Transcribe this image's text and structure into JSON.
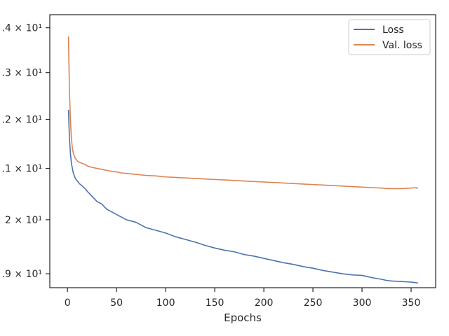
{
  "chart_data": {
    "type": "line",
    "xlabel": "Epochs",
    "ylabel": "",
    "yscale": "log",
    "xlim": [
      -18,
      375
    ],
    "ylim": [
      18.75,
      24.3
    ],
    "x_ticks": [
      0,
      50,
      100,
      150,
      200,
      250,
      300,
      350
    ],
    "x_tick_labels": [
      "0",
      "50",
      "100",
      "150",
      "200",
      "250",
      "300",
      "350"
    ],
    "y_ticks": [
      {
        "value": 19,
        "label": ".9 × 10¹"
      },
      {
        "value": 20,
        "label": "2 × 10¹"
      },
      {
        "value": 21,
        "label": ".1 × 10¹"
      },
      {
        "value": 22,
        "label": ".2 × 10¹"
      },
      {
        "value": 23,
        "label": ".3 × 10¹"
      },
      {
        "value": 24,
        "label": ".4 × 10¹"
      }
    ],
    "grid": false,
    "legend_position": "top-right",
    "series": [
      {
        "name": "Loss",
        "color": "#4c72b0",
        "x": [
          1,
          2,
          3,
          4,
          5,
          6,
          8,
          10,
          12,
          15,
          18,
          20,
          25,
          30,
          35,
          40,
          45,
          50,
          55,
          60,
          70,
          75,
          80,
          90,
          100,
          110,
          120,
          130,
          140,
          150,
          160,
          170,
          180,
          190,
          200,
          210,
          220,
          230,
          240,
          250,
          260,
          270,
          280,
          290,
          300,
          310,
          320,
          325,
          330,
          340,
          350,
          355,
          357
        ],
        "y": [
          22.2,
          21.6,
          21.3,
          21.1,
          21.0,
          20.9,
          20.8,
          20.75,
          20.7,
          20.65,
          20.6,
          20.55,
          20.45,
          20.35,
          20.3,
          20.2,
          20.15,
          20.1,
          20.05,
          20.0,
          19.95,
          19.9,
          19.85,
          19.8,
          19.75,
          19.68,
          19.63,
          19.58,
          19.52,
          19.47,
          19.43,
          19.4,
          19.35,
          19.32,
          19.28,
          19.24,
          19.2,
          19.17,
          19.13,
          19.1,
          19.06,
          19.03,
          19.0,
          18.98,
          18.97,
          18.93,
          18.9,
          18.88,
          18.87,
          18.86,
          18.85,
          18.84,
          18.83
        ]
      },
      {
        "name": "Val. loss",
        "color": "#dd8452",
        "x": [
          1,
          2,
          3,
          4,
          5,
          6,
          8,
          10,
          12,
          15,
          18,
          20,
          25,
          30,
          35,
          40,
          45,
          50,
          55,
          60,
          70,
          75,
          80,
          90,
          100,
          110,
          120,
          130,
          140,
          150,
          160,
          170,
          180,
          190,
          200,
          210,
          220,
          230,
          240,
          250,
          260,
          270,
          280,
          290,
          300,
          310,
          320,
          325,
          330,
          340,
          350,
          355,
          357
        ],
        "y": [
          23.8,
          22.6,
          22.0,
          21.6,
          21.4,
          21.3,
          21.2,
          21.15,
          21.12,
          21.1,
          21.08,
          21.05,
          21.02,
          21.0,
          20.98,
          20.96,
          20.94,
          20.93,
          20.91,
          20.9,
          20.88,
          20.87,
          20.86,
          20.85,
          20.83,
          20.82,
          20.81,
          20.8,
          20.79,
          20.78,
          20.77,
          20.76,
          20.75,
          20.74,
          20.73,
          20.72,
          20.71,
          20.7,
          20.69,
          20.68,
          20.67,
          20.66,
          20.65,
          20.64,
          20.63,
          20.62,
          20.61,
          20.6,
          20.6,
          20.6,
          20.61,
          20.62,
          20.6
        ]
      }
    ]
  }
}
